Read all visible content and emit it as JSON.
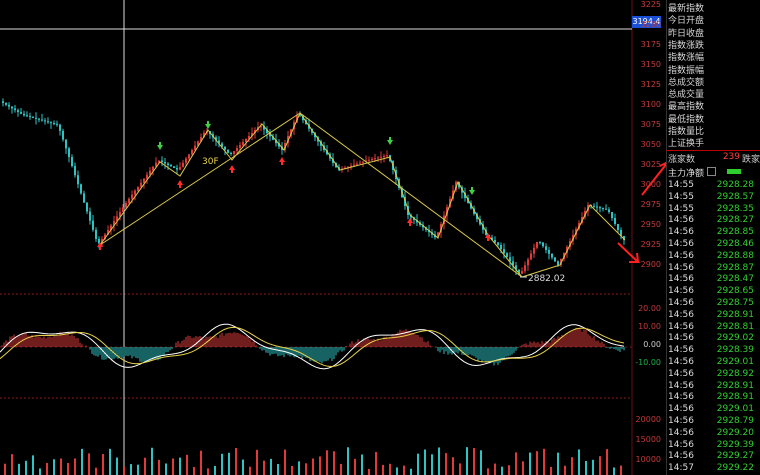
{
  "price_axis": {
    "labels": [
      "3225",
      "3200",
      "3175",
      "3150",
      "3125",
      "3100",
      "3075",
      "3050",
      "3025",
      "3000",
      "2975",
      "2950",
      "2925",
      "2900"
    ],
    "current_price_badge": "3194.4"
  },
  "indicator_axis": {
    "labels": [
      "20.00",
      "10.00",
      "0.00",
      "-10.00"
    ]
  },
  "volume_axis": {
    "labels": [
      "20000",
      "15000",
      "10000"
    ]
  },
  "chart_annotations": {
    "period_label": "30F",
    "low_label": "2882.02"
  },
  "sidebar": {
    "fields": [
      "最新指数",
      "今日开盘",
      "昨日收盘",
      "指数涨跌",
      "指数涨幅",
      "指数振幅",
      "总成交额",
      "总成交量",
      "最高指数",
      "最低指数",
      "指数量比",
      "上证换手"
    ],
    "up_label": "涨家数",
    "up_value": "239",
    "down_label": "跌家",
    "flow_label": "主力净额"
  },
  "ticks": [
    {
      "time": "14:55",
      "price": "2928.28"
    },
    {
      "time": "14:55",
      "price": "2928.57"
    },
    {
      "time": "14:55",
      "price": "2928.35"
    },
    {
      "time": "14:56",
      "price": "2928.27"
    },
    {
      "time": "14:56",
      "price": "2928.85"
    },
    {
      "time": "14:56",
      "price": "2928.46"
    },
    {
      "time": "14:56",
      "price": "2928.88"
    },
    {
      "time": "14:56",
      "price": "2928.87"
    },
    {
      "time": "14:56",
      "price": "2928.47"
    },
    {
      "time": "14:56",
      "price": "2928.65"
    },
    {
      "time": "14:56",
      "price": "2928.75"
    },
    {
      "time": "14:56",
      "price": "2928.91"
    },
    {
      "time": "14:56",
      "price": "2928.81"
    },
    {
      "time": "14:56",
      "price": "2929.02"
    },
    {
      "time": "14:56",
      "price": "2928.39"
    },
    {
      "time": "14:56",
      "price": "2929.01"
    },
    {
      "time": "14:56",
      "price": "2928.92"
    },
    {
      "time": "14:56",
      "price": "2928.91"
    },
    {
      "time": "14:56",
      "price": "2928.91"
    },
    {
      "time": "14:56",
      "price": "2929.01"
    },
    {
      "time": "14:56",
      "price": "2928.79"
    },
    {
      "time": "14:56",
      "price": "2929.20"
    },
    {
      "time": "14:56",
      "price": "2929.39"
    },
    {
      "time": "14:56",
      "price": "2929.27"
    },
    {
      "time": "14:57",
      "price": "2929.22"
    }
  ],
  "colors": {
    "up": "#e03a3a",
    "down": "#2ec4c4",
    "grid": "#8b1a1a",
    "zigzag": "#d8c84a",
    "macd1": "#ffffff",
    "macd2": "#e8d24a"
  }
}
